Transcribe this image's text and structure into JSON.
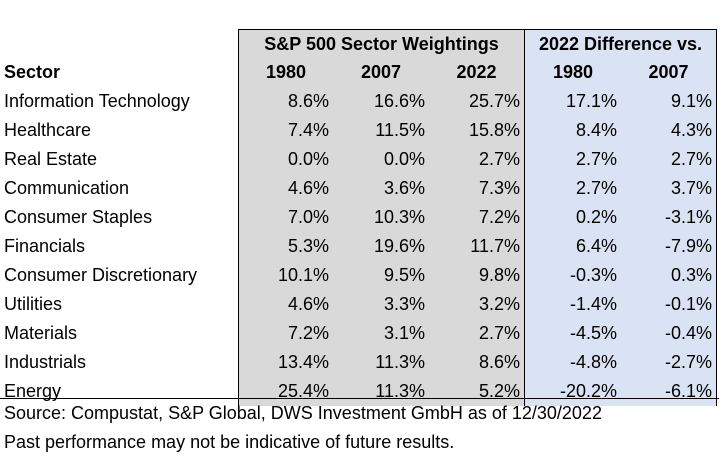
{
  "chart_data": {
    "type": "table",
    "group_headers": [
      "S&P 500 Sector Weightings",
      "2022 Difference vs."
    ],
    "columns": [
      "Sector",
      "1980",
      "2007",
      "2022",
      "1980",
      "2007"
    ],
    "rows": [
      {
        "sector": "Information Technology",
        "values": [
          "8.6%",
          "16.6%",
          "25.7%",
          "17.1%",
          "9.1%"
        ]
      },
      {
        "sector": "Healthcare",
        "values": [
          "7.4%",
          "11.5%",
          "15.8%",
          "8.4%",
          "4.3%"
        ]
      },
      {
        "sector": "Real Estate",
        "values": [
          "0.0%",
          "0.0%",
          "2.7%",
          "2.7%",
          "2.7%"
        ]
      },
      {
        "sector": "Communication",
        "values": [
          "4.6%",
          "3.6%",
          "7.3%",
          "2.7%",
          "3.7%"
        ]
      },
      {
        "sector": "Consumer Staples",
        "values": [
          "7.0%",
          "10.3%",
          "7.2%",
          "0.2%",
          "-3.1%"
        ]
      },
      {
        "sector": "Financials",
        "values": [
          "5.3%",
          "19.6%",
          "11.7%",
          "6.4%",
          "-7.9%"
        ]
      },
      {
        "sector": "Consumer Discretionary",
        "values": [
          "10.1%",
          "9.5%",
          "9.8%",
          "-0.3%",
          "0.3%"
        ]
      },
      {
        "sector": "Utilities",
        "values": [
          "4.6%",
          "3.3%",
          "3.2%",
          "-1.4%",
          "-0.1%"
        ]
      },
      {
        "sector": "Materials",
        "values": [
          "7.2%",
          "3.1%",
          "2.7%",
          "-4.5%",
          "-0.4%"
        ]
      },
      {
        "sector": "Industrials",
        "values": [
          "13.4%",
          "11.3%",
          "8.6%",
          "-4.8%",
          "-2.7%"
        ]
      },
      {
        "sector": "Energy",
        "values": [
          "25.4%",
          "11.3%",
          "5.2%",
          "-20.2%",
          "-6.1%"
        ]
      }
    ],
    "footnotes": [
      "Source: Compustat, S&P Global, DWS Investment GmbH as of 12/30/2022",
      "Past performance may not be indicative of future results."
    ]
  },
  "colors": {
    "weightings_fill": "#d9d9d9",
    "difference_fill": "#dae3f3",
    "border": "#000000"
  }
}
